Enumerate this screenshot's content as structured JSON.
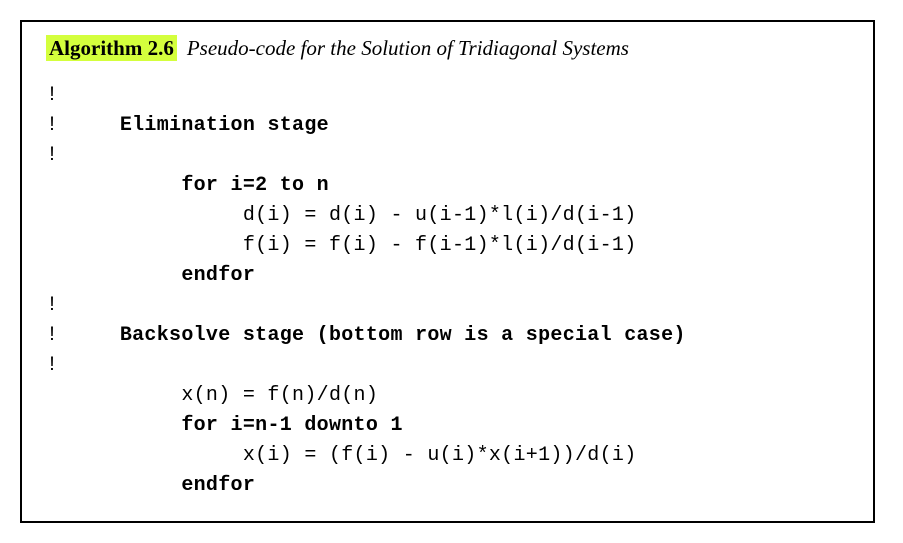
{
  "header": {
    "label": "Algorithm 2.6",
    "title": "Pseudo-code for the Solution of Tridiagonal Systems"
  },
  "code": {
    "line1": "!",
    "line2a": "!",
    "line2b": "     Elimination stage",
    "line3": "!",
    "line4a": "           ",
    "line4b": "for i=2 to n",
    "line5": "                d(i) = d(i) - u(i-1)*l(i)/d(i-1)",
    "line6": "                f(i) = f(i) - f(i-1)*l(i)/d(i-1)",
    "line7a": "           ",
    "line7b": "endfor",
    "line8": "!",
    "line9a": "!",
    "line9b": "     Backsolve stage (bottom row is a special case)",
    "line10": "!",
    "line11": "           x(n) = f(n)/d(n)",
    "line12a": "           ",
    "line12b": "for i=n-1 downto 1",
    "line13": "                x(i) = (f(i) - u(i)*x(i+1))/d(i)",
    "line14a": "           ",
    "line14b": "endfor"
  },
  "styling": {
    "highlight_color": "#d4ff3d",
    "border_color": "#000000",
    "background_color": "#ffffff",
    "text_color": "#000000",
    "header_fontsize": 21,
    "code_fontsize": 20,
    "code_font": "Courier New",
    "header_font": "Times New Roman"
  }
}
